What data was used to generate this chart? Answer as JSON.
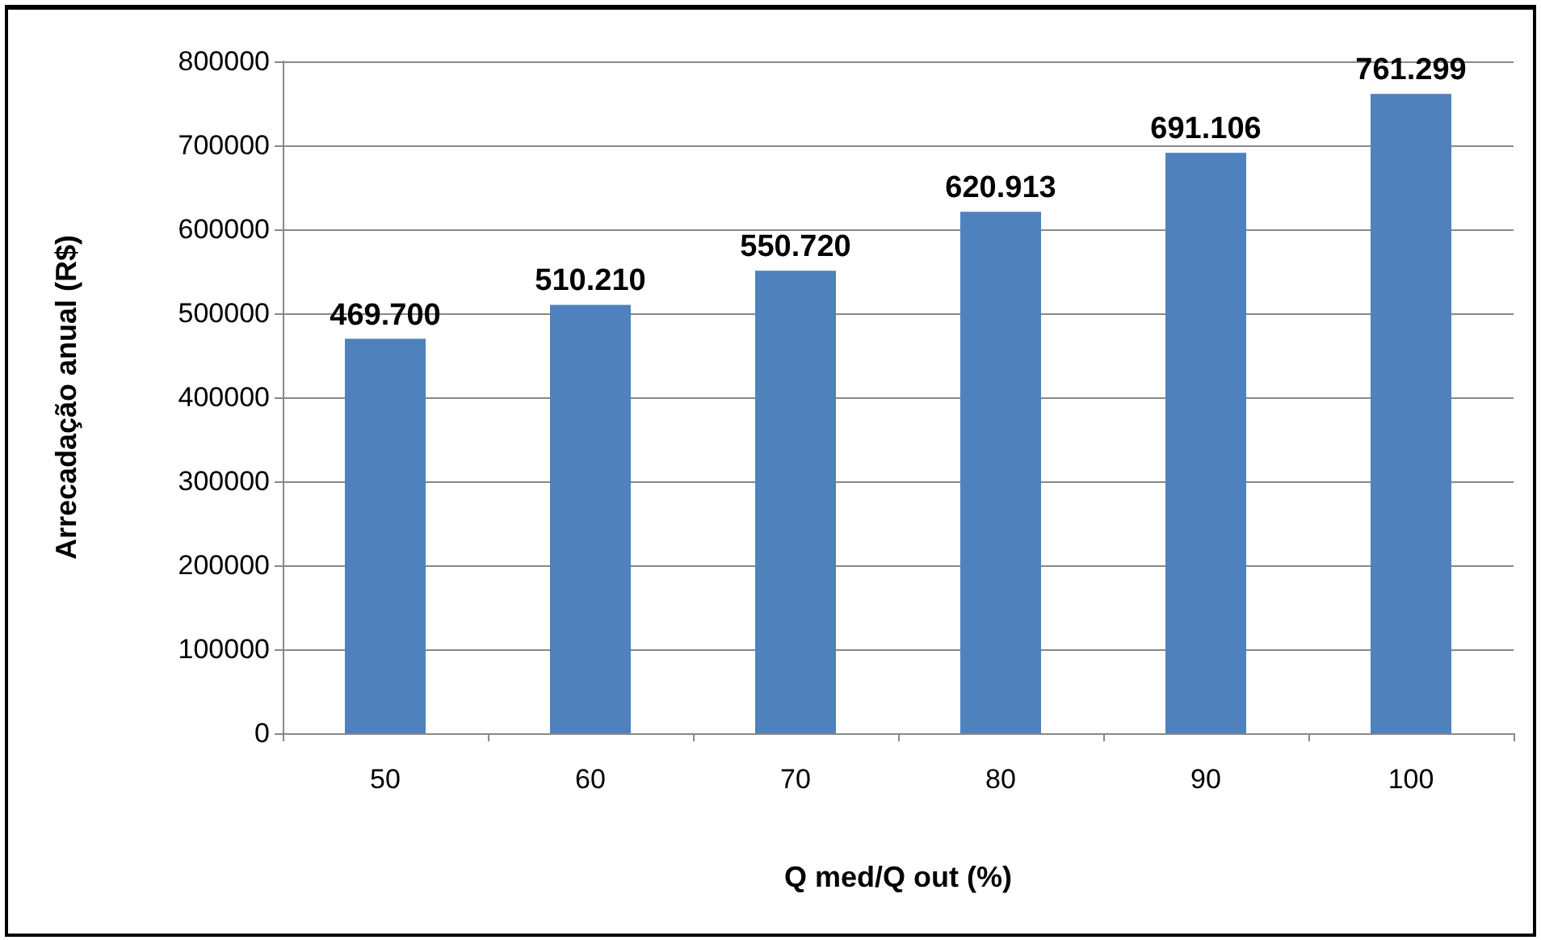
{
  "chart_data": {
    "type": "bar",
    "xlabel": "Q med/Q out (%)",
    "ylabel": "Arrecadação anual (R$)",
    "categories": [
      "50",
      "60",
      "70",
      "80",
      "90",
      "100"
    ],
    "values": [
      469700,
      510210,
      550720,
      620913,
      691106,
      761299
    ],
    "value_labels": [
      "469.700",
      "510.210",
      "550.720",
      "620.913",
      "691.106",
      "761.299"
    ],
    "color": "#4f81bd",
    "ylim": [
      0,
      800000
    ],
    "yticks": [
      0,
      100000,
      200000,
      300000,
      400000,
      500000,
      600000,
      700000,
      800000
    ],
    "grid": "y"
  }
}
